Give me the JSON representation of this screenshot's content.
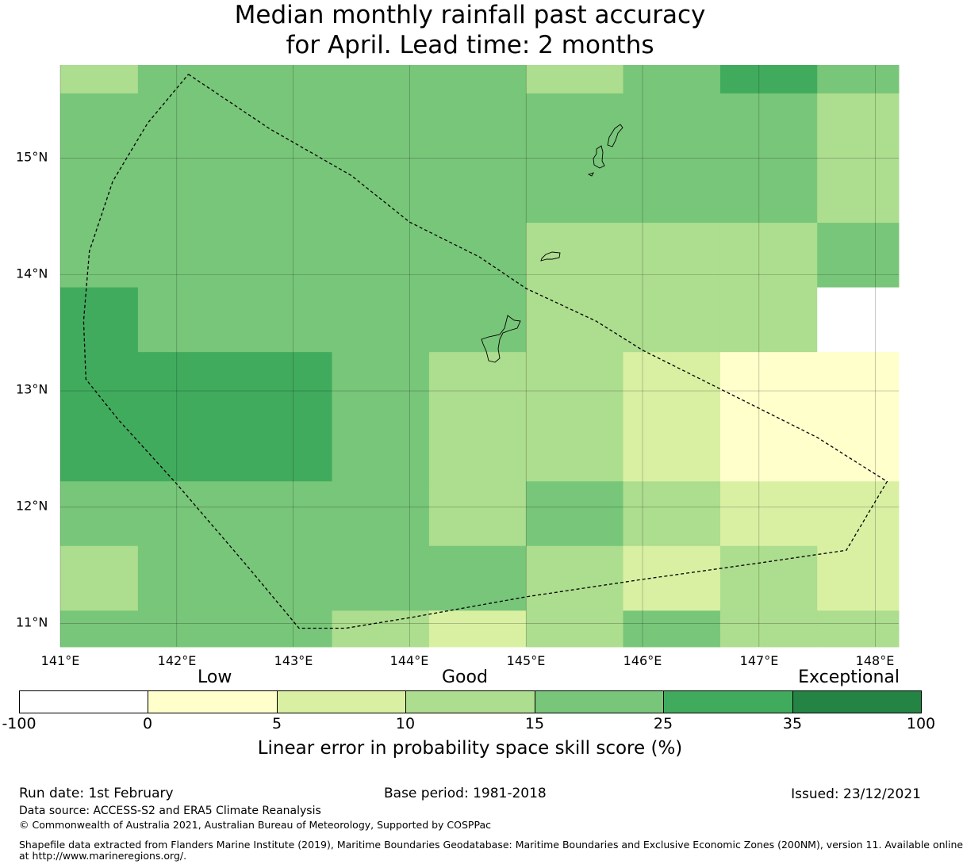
{
  "title": {
    "line1": "Median monthly rainfall past accuracy",
    "line2": "for April. Lead time: 2 months"
  },
  "map": {
    "lon_range": [
      141.0,
      148.2
    ],
    "lat_range": [
      10.8,
      15.8
    ],
    "x_ticks": [
      "141°E",
      "142°E",
      "143°E",
      "144°E",
      "145°E",
      "146°E",
      "147°E",
      "148°E"
    ],
    "y_ticks": [
      "15°N",
      "14°N",
      "13°N",
      "12°N",
      "11°N"
    ],
    "lon_edges": [
      141.0,
      141.667,
      142.5,
      143.333,
      144.167,
      145.0,
      145.833,
      146.667,
      147.5,
      148.2
    ],
    "lat_edges": [
      15.8,
      15.556,
      14.444,
      13.889,
      13.333,
      12.222,
      11.667,
      11.111,
      10.8
    ],
    "cells": [
      [
        3,
        4,
        4,
        4,
        4,
        3,
        4,
        5,
        4
      ],
      [
        4,
        4,
        4,
        4,
        4,
        4,
        4,
        4,
        3
      ],
      [
        4,
        4,
        4,
        4,
        4,
        3,
        3,
        3,
        4
      ],
      [
        5,
        4,
        4,
        4,
        4,
        3,
        3,
        3,
        0
      ],
      [
        5,
        5,
        5,
        4,
        3,
        3,
        2,
        1,
        1
      ],
      [
        4,
        4,
        4,
        4,
        3,
        4,
        3,
        2,
        2
      ],
      [
        3,
        4,
        4,
        4,
        4,
        3,
        2,
        3,
        2
      ],
      [
        4,
        4,
        4,
        3,
        2,
        3,
        4,
        3,
        3
      ]
    ],
    "eez_boundary": [
      [
        142.1,
        15.72
      ],
      [
        142.8,
        15.25
      ],
      [
        143.5,
        14.85
      ],
      [
        144.0,
        14.45
      ],
      [
        144.6,
        14.15
      ],
      [
        145.0,
        13.88
      ],
      [
        145.6,
        13.6
      ],
      [
        146.0,
        13.35
      ],
      [
        146.5,
        13.1
      ],
      [
        147.0,
        12.85
      ],
      [
        147.5,
        12.6
      ],
      [
        148.1,
        12.22
      ],
      [
        147.75,
        11.63
      ],
      [
        147.0,
        11.52
      ],
      [
        146.0,
        11.38
      ],
      [
        145.0,
        11.23
      ],
      [
        144.0,
        11.05
      ],
      [
        143.45,
        10.96
      ],
      [
        143.05,
        10.96
      ],
      [
        142.6,
        11.5
      ],
      [
        142.0,
        12.2
      ],
      [
        141.5,
        12.75
      ],
      [
        141.22,
        13.1
      ],
      [
        141.2,
        13.6
      ],
      [
        141.25,
        14.2
      ],
      [
        141.45,
        14.8
      ],
      [
        141.75,
        15.3
      ],
      [
        142.1,
        15.72
      ]
    ]
  },
  "colorbar": {
    "qualitative": [
      "Low",
      "Good",
      "Exceptional"
    ],
    "ticks": [
      "-100",
      "0",
      "5",
      "10",
      "15",
      "25",
      "35",
      "100"
    ],
    "colors": [
      "#ffffff",
      "#ffffcc",
      "#d9f0a3",
      "#addd8e",
      "#78c679",
      "#41ab5d",
      "#238443"
    ],
    "label": "Linear error in probability space skill score (%)"
  },
  "footer": {
    "run_date": "Run date: 1st February",
    "base_period": "Base period: 1981-2018",
    "issued": "Issued: 23/12/2021",
    "data_source": "Data source: ACCESS-S2 and ERA5 Climate Reanalysis",
    "copyright": "© Commonwealth of Australia 2021, Australian Bureau of Meteorology, Supported by COSPPac",
    "shapefile_line1": "Shapefile data extracted from Flanders Marine Institute (2019), Maritime Boundaries Geodatabase: Maritime Boundaries and Exclusive Economic Zones (200NM), version 11. Available online",
    "shapefile_line2": "at http://www.marineregions.org/."
  }
}
